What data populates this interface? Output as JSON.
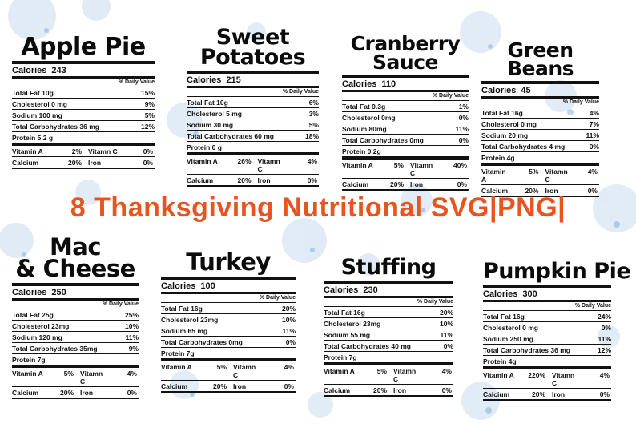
{
  "banner": "8 Thanksgiving Nutritional SVG|PNG|",
  "colors": {
    "banner": "#e85420",
    "splatter": "#a9c8e6"
  },
  "common": {
    "calories_label": "Calories",
    "daily_value": "% Daily Value",
    "vitamin_a": "Vitamin A",
    "vitamin_c": "Vitamn C",
    "calcium": "Calcium",
    "iron": "Iron"
  },
  "labels": [
    {
      "title_lines": [
        "Apple Pie"
      ],
      "calories": "243",
      "nutrients": [
        {
          "name": "Total Fat 10g",
          "dv": "15%"
        },
        {
          "name": "Cholesterol 0 mg",
          "dv": "9%"
        },
        {
          "name": "Sodium 100 mg",
          "dv": "5%"
        },
        {
          "name": "Total Carbohydrates 36 mg",
          "dv": "12%"
        },
        {
          "name": "Protein 5.2 g",
          "dv": ""
        }
      ],
      "vitamin_a": "2%",
      "vitamin_c": "0%",
      "calcium": "20%",
      "iron": "0%"
    },
    {
      "title_lines": [
        "Sweet",
        "Potatoes"
      ],
      "calories": "215",
      "nutrients": [
        {
          "name": "Total Fat 10g",
          "dv": "6%"
        },
        {
          "name": "Cholesterol 5 mg",
          "dv": "3%"
        },
        {
          "name": "Sodium 30 mg",
          "dv": "5%"
        },
        {
          "name": "Total Carbohydrates 60 mg",
          "dv": "18%"
        },
        {
          "name": "Protein 0 g",
          "dv": ""
        }
      ],
      "vitamin_a": "26%",
      "vitamin_c": "4%",
      "calcium": "20%",
      "iron": "0%"
    },
    {
      "title_lines": [
        "Cranberry",
        "Sauce"
      ],
      "calories": "110",
      "nutrients": [
        {
          "name": "Total Fat 0.3g",
          "dv": "1%"
        },
        {
          "name": "Cholesterol 0mg",
          "dv": "0%"
        },
        {
          "name": "Sodium 80mg",
          "dv": "11%"
        },
        {
          "name": "Total Carbohydrates 0mg",
          "dv": "0%"
        },
        {
          "name": "Protein 0.2g",
          "dv": ""
        }
      ],
      "vitamin_a": "5%",
      "vitamin_c": "40%",
      "calcium": "20%",
      "iron": "0%"
    },
    {
      "title_lines": [
        "Green",
        "Beans"
      ],
      "calories": "45",
      "nutrients": [
        {
          "name": "Total Fat 16g",
          "dv": "4%"
        },
        {
          "name": "Cholesterol 0 mg",
          "dv": "7%"
        },
        {
          "name": "Sodium 20 mg",
          "dv": "11%"
        },
        {
          "name": "Total Carbohydrates 4 mg",
          "dv": "0%"
        },
        {
          "name": "Protein 4g",
          "dv": ""
        }
      ],
      "vitamin_a": "5%",
      "vitamin_c": "4%",
      "calcium": "20%",
      "iron": "0%"
    },
    {
      "title_lines": [
        "Mac",
        "& Cheese"
      ],
      "calories": "250",
      "nutrients": [
        {
          "name": "Total Fat 25g",
          "dv": "25%"
        },
        {
          "name": "Cholesterol 23mg",
          "dv": "10%"
        },
        {
          "name": "Sodium 120 mg",
          "dv": "11%"
        },
        {
          "name": "Total Carbohydrates 35mg",
          "dv": "9%"
        },
        {
          "name": "Protein 7g",
          "dv": ""
        }
      ],
      "vitamin_a": "5%",
      "vitamin_c": "4%",
      "calcium": "20%",
      "iron": "0%"
    },
    {
      "title_lines": [
        "Turkey"
      ],
      "calories": "100",
      "nutrients": [
        {
          "name": "Total Fat 16g",
          "dv": "20%"
        },
        {
          "name": "Cholesterol 23mg",
          "dv": "10%"
        },
        {
          "name": "Sodium 65 mg",
          "dv": "11%"
        },
        {
          "name": "Total Carbohydrates 0mg",
          "dv": "0%"
        },
        {
          "name": "Protein 7g",
          "dv": ""
        }
      ],
      "vitamin_a": "5%",
      "vitamin_c": "4%",
      "calcium": "20%",
      "iron": "0%"
    },
    {
      "title_lines": [
        "Stuffing"
      ],
      "calories": "230",
      "nutrients": [
        {
          "name": "Total Fat 16g",
          "dv": "20%"
        },
        {
          "name": "Cholesterol 23mg",
          "dv": "10%"
        },
        {
          "name": "Sodium 55 mg",
          "dv": "11%"
        },
        {
          "name": "Total Carbohydrates 40 mg",
          "dv": "0%"
        },
        {
          "name": "Protein 7g",
          "dv": ""
        }
      ],
      "vitamin_a": "5%",
      "vitamin_c": "4%",
      "calcium": "20%",
      "iron": "0%"
    },
    {
      "title_lines": [
        "Pumpkin Pie"
      ],
      "calories": "300",
      "nutrients": [
        {
          "name": "Total Fat 16g",
          "dv": "24%"
        },
        {
          "name": "Cholesterol 0 mg",
          "dv": "0%"
        },
        {
          "name": "Sodium 250 mg",
          "dv": "11%"
        },
        {
          "name": "Total Carbohydrates 36 mg",
          "dv": "12%"
        },
        {
          "name": "Protein 4g",
          "dv": ""
        }
      ],
      "vitamin_a": "220%",
      "vitamin_c": "4%",
      "calcium": "20%",
      "iron": "0%"
    }
  ]
}
